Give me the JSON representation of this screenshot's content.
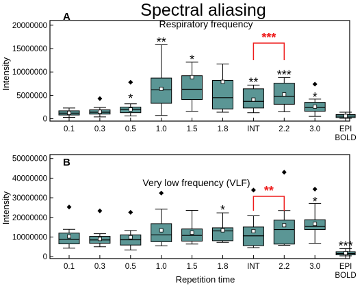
{
  "figure": {
    "title": "Spectral aliasing",
    "xlabel": "Repetition time",
    "colors": {
      "box": "#5b9695",
      "mean_marker": "#ffffff",
      "star": "#000000",
      "highlight": "#ee1c1c"
    }
  },
  "chart_data": [
    {
      "type": "box",
      "panel_label": "A",
      "title": "Respiratory frequency",
      "ylabel": "Intensity",
      "categories": [
        "0.1",
        "0.3",
        "0.5",
        "1.0",
        "1.5",
        "1.8",
        "INT",
        "2.2",
        "3.0",
        "EPI\nBOLD"
      ],
      "ylim": [
        -500000,
        21000000
      ],
      "yticks": [
        0,
        5000000,
        10000000,
        15000000,
        20000000
      ],
      "ytick_labels": [
        "0",
        "5000000",
        "10000000",
        "15000000",
        "20000000"
      ],
      "boxes": [
        {
          "whisker_low": 300000,
          "q1": 800000,
          "median": 1200000,
          "q3": 1700000,
          "whisker_high": 2300000,
          "mean": 1250000,
          "outliers": [],
          "significance": ""
        },
        {
          "whisker_low": 400000,
          "q1": 1000000,
          "median": 1400000,
          "q3": 1900000,
          "whisker_high": 2400000,
          "mean": 1500000,
          "outliers": [
            4300000
          ],
          "significance": ""
        },
        {
          "whisker_low": 600000,
          "q1": 1300000,
          "median": 2000000,
          "q3": 2500000,
          "whisker_high": 3200000,
          "mean": 2000000,
          "outliers": [
            7800000
          ],
          "significance": "*"
        },
        {
          "whisker_low": 700000,
          "q1": 3300000,
          "median": 6200000,
          "q3": 8700000,
          "whisker_high": 15800000,
          "mean": 6400000,
          "outliers": [],
          "significance": "**"
        },
        {
          "whisker_low": 1600000,
          "q1": 4100000,
          "median": 6300000,
          "q3": 9200000,
          "whisker_high": 12100000,
          "mean": 8900000,
          "outliers": [],
          "significance": "*"
        },
        {
          "whisker_low": 1400000,
          "q1": 2100000,
          "median": 4500000,
          "q3": 8200000,
          "whisker_high": 11700000,
          "mean": 7900000,
          "outliers": [],
          "significance": ""
        },
        {
          "whisker_low": 1300000,
          "q1": 2300000,
          "median": 3700000,
          "q3": 6400000,
          "whisker_high": 7200000,
          "mean": 4100000,
          "outliers": [],
          "significance": "**"
        },
        {
          "whisker_low": 1500000,
          "q1": 3100000,
          "median": 4800000,
          "q3": 7600000,
          "whisker_high": 8800000,
          "mean": 5200000,
          "outliers": [],
          "significance": "***"
        },
        {
          "whisker_low": 500000,
          "q1": 1600000,
          "median": 2400000,
          "q3": 3500000,
          "whisker_high": 4200000,
          "mean": 2600000,
          "outliers": [
            7400000
          ],
          "significance": "*"
        },
        {
          "whisker_low": 100000,
          "q1": 250000,
          "median": 550000,
          "q3": 900000,
          "whisker_high": 1400000,
          "mean": 600000,
          "outliers": [],
          "significance": ""
        }
      ],
      "comparison": {
        "from": "INT",
        "to": "2.2",
        "label": "***"
      }
    },
    {
      "type": "box",
      "panel_label": "B",
      "title": "Very low frequency (VLF)",
      "ylabel": "Intensity",
      "categories": [
        "0.1",
        "0.3",
        "0.5",
        "1.0",
        "1.5",
        "1.8",
        "INT",
        "2.2",
        "3.0",
        "EPI\nBOLD"
      ],
      "ylim": [
        -1000000,
        52000000
      ],
      "yticks": [
        0,
        10000000,
        20000000,
        30000000,
        40000000,
        50000000
      ],
      "ytick_labels": [
        "0",
        "10000000",
        "20000000",
        "30000000",
        "40000000",
        "50000000"
      ],
      "boxes": [
        {
          "whisker_low": 4300000,
          "q1": 6500000,
          "median": 8800000,
          "q3": 12000000,
          "whisker_high": 13900000,
          "mean": 10300000,
          "outliers": [
            25300000
          ],
          "significance": ""
        },
        {
          "whisker_low": 5000000,
          "q1": 6800000,
          "median": 8500000,
          "q3": 10300000,
          "whisker_high": 11700000,
          "mean": 9000000,
          "outliers": [
            23300000
          ],
          "significance": ""
        },
        {
          "whisker_low": 3400000,
          "q1": 5900000,
          "median": 8600000,
          "q3": 11100000,
          "whisker_high": 13300000,
          "mean": 9900000,
          "outliers": [
            22600000
          ],
          "significance": ""
        },
        {
          "whisker_low": 5500000,
          "q1": 7600000,
          "median": 11100000,
          "q3": 16800000,
          "whisker_high": 24200000,
          "mean": 13400000,
          "outliers": [
            32400000
          ],
          "significance": ""
        },
        {
          "whisker_low": 6400000,
          "q1": 7900000,
          "median": 10800000,
          "q3": 14100000,
          "whisker_high": 23600000,
          "mean": 12200000,
          "outliers": [],
          "significance": ""
        },
        {
          "whisker_low": 7300000,
          "q1": 8100000,
          "median": 13100000,
          "q3": 14700000,
          "whisker_high": 22300000,
          "mean": 13400000,
          "outliers": [],
          "significance": "*"
        },
        {
          "whisker_low": 4600000,
          "q1": 5600000,
          "median": 10600000,
          "q3": 15100000,
          "whisker_high": 20800000,
          "mean": 13000000,
          "outliers": [
            33900000
          ],
          "significance": ""
        },
        {
          "whisker_low": 5800000,
          "q1": 6400000,
          "median": 13800000,
          "q3": 18600000,
          "whisker_high": 23500000,
          "mean": 16000000,
          "outliers": [
            43000000
          ],
          "significance": ""
        },
        {
          "whisker_low": 6800000,
          "q1": 13800000,
          "median": 15400000,
          "q3": 18800000,
          "whisker_high": 27100000,
          "mean": 16700000,
          "outliers": [
            34400000
          ],
          "significance": "*"
        },
        {
          "whisker_low": 400000,
          "q1": 900000,
          "median": 1600000,
          "q3": 2500000,
          "whisker_high": 4100000,
          "mean": 1800000,
          "outliers": [],
          "significance": "***"
        }
      ],
      "comparison": {
        "from": "INT",
        "to": "2.2",
        "label": "**"
      }
    }
  ]
}
